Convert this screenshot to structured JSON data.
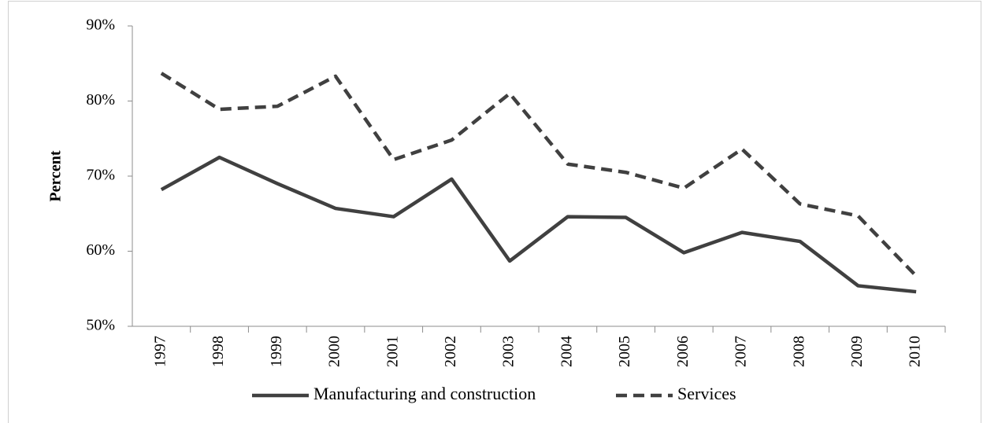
{
  "chart_data": {
    "type": "line",
    "y_label": "Percent",
    "categories": [
      "1997",
      "1998",
      "1999",
      "2000",
      "2001",
      "2002",
      "2003",
      "2004",
      "2005",
      "2006",
      "2007",
      "2008",
      "2009",
      "2010"
    ],
    "series": [
      {
        "name": "Manufacturing and construction",
        "color": "#404040",
        "line_style": "solid",
        "values": [
          68.2,
          72.5,
          69.0,
          65.7,
          64.6,
          69.6,
          58.7,
          64.6,
          64.5,
          59.8,
          62.5,
          61.3,
          55.4,
          54.6
        ]
      },
      {
        "name": "Services",
        "color": "#404040",
        "line_style": "dashed",
        "values": [
          83.7,
          78.9,
          79.3,
          83.3,
          72.2,
          74.8,
          81.0,
          71.6,
          70.5,
          68.4,
          73.6,
          66.3,
          64.7,
          56.7
        ]
      }
    ],
    "ylim": [
      50,
      90
    ],
    "yticks": [
      {
        "value": 50,
        "label": "50%"
      },
      {
        "value": 60,
        "label": "60%"
      },
      {
        "value": 70,
        "label": "70%"
      },
      {
        "value": 80,
        "label": "80%"
      },
      {
        "value": 90,
        "label": "90%"
      }
    ],
    "grid": false,
    "legend": "bottom"
  }
}
